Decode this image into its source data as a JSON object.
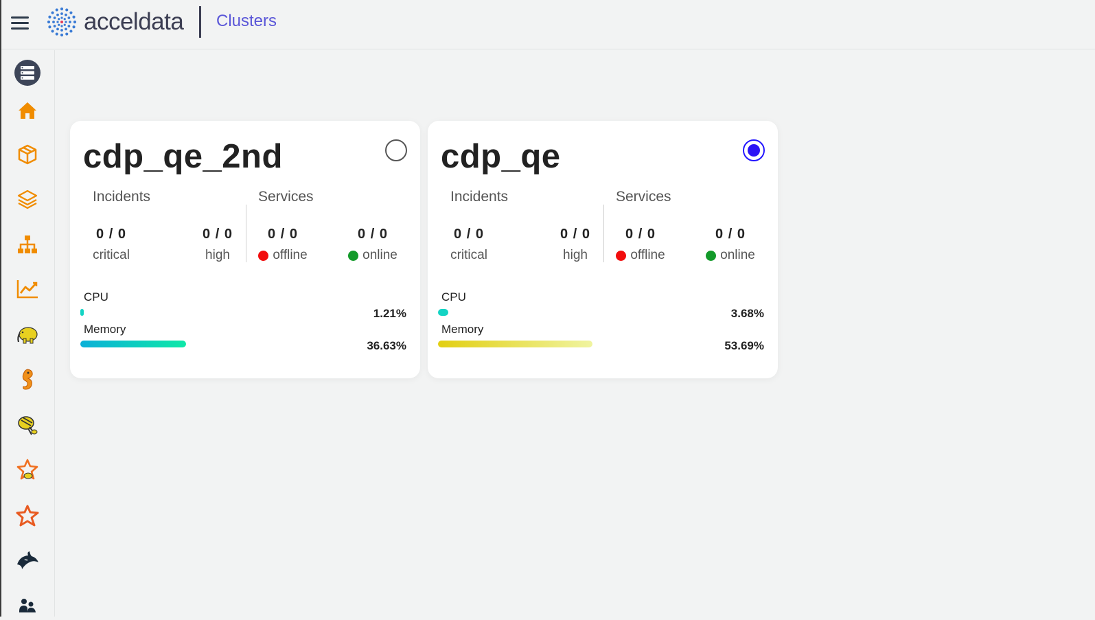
{
  "header": {
    "logo_text": "acceldata",
    "page_title": "Clusters"
  },
  "sidebar": {
    "items": [
      {
        "icon": "server-stack-icon",
        "color": "#3d4558"
      },
      {
        "icon": "home-icon",
        "color": "#f08c00"
      },
      {
        "icon": "cube-icon",
        "color": "#f08c00"
      },
      {
        "icon": "layers-icon",
        "color": "#f08c00"
      },
      {
        "icon": "hierarchy-icon",
        "color": "#f08c00"
      },
      {
        "icon": "line-chart-icon",
        "color": "#f08c00"
      },
      {
        "icon": "hadoop-elephant-icon",
        "color": "#e8d020"
      },
      {
        "icon": "seahorse-icon",
        "color": "#f0901a"
      },
      {
        "icon": "hive-bee-icon",
        "color": "#e8d020"
      },
      {
        "icon": "spark-star-icon",
        "color": "#f07020"
      },
      {
        "icon": "spark-star-outline-icon",
        "color": "#e85a20"
      },
      {
        "icon": "orca-icon",
        "color": "#1a2a3a"
      },
      {
        "icon": "people-icon",
        "color": "#1a2a3a"
      }
    ]
  },
  "clusters": [
    {
      "name": "cdp_qe_2nd",
      "selected": false,
      "incidents_label": "Incidents",
      "services_label": "Services",
      "critical": {
        "value": "0 / 0",
        "label": "critical"
      },
      "high": {
        "value": "0 / 0",
        "label": "high"
      },
      "offline": {
        "value": "0 / 0",
        "label": "offline"
      },
      "online": {
        "value": "0 / 0",
        "label": "online"
      },
      "cpu": {
        "label": "CPU",
        "value": "1.21%",
        "fraction": 0.0121,
        "color": "#13d4c4"
      },
      "memory": {
        "label": "Memory",
        "value": "36.63%",
        "fraction": 0.3663,
        "color_from": "#0bb0d8",
        "color_to": "#0fe8a8"
      }
    },
    {
      "name": "cdp_qe",
      "selected": true,
      "incidents_label": "Incidents",
      "services_label": "Services",
      "critical": {
        "value": "0 / 0",
        "label": "critical"
      },
      "high": {
        "value": "0 / 0",
        "label": "high"
      },
      "offline": {
        "value": "0 / 0",
        "label": "offline"
      },
      "online": {
        "value": "0 / 0",
        "label": "online"
      },
      "cpu": {
        "label": "CPU",
        "value": "3.68%",
        "fraction": 0.0368,
        "color": "#13d4c4"
      },
      "memory": {
        "label": "Memory",
        "value": "53.69%",
        "fraction": 0.5369,
        "color_from": "#e2cf12",
        "color_to": "#f0f4a0"
      }
    }
  ]
}
